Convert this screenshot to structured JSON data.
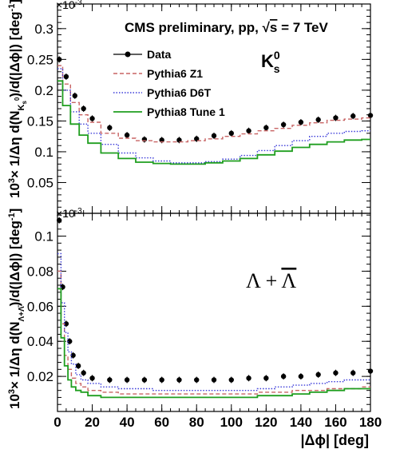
{
  "figure": {
    "header": "CMS preliminary, pp, ",
    "sqrt_symbol": "√",
    "energy_s": "s",
    "energy_value": " = 7 TeV",
    "xlabel": "|Δϕ| [deg]"
  },
  "legend": [
    {
      "key": "data",
      "label": "Data"
    },
    {
      "key": "z1",
      "label": "Pythia6 Z1"
    },
    {
      "key": "d6t",
      "label": "Pythia6 D6T"
    },
    {
      "key": "p8",
      "label": "Pythia8 Tune 1"
    }
  ],
  "colors": {
    "data": "#000000",
    "z1": "#c86464",
    "d6t": "#3b3bd9",
    "p8": "#1f9e1f",
    "frame": "#000000"
  },
  "chart_data": [
    {
      "type": "line",
      "panel": "top",
      "particle_label": "K",
      "particle_sup": "0",
      "particle_sub": "s",
      "multiplier_base": "×10",
      "multiplier_exp": "-3",
      "ylabel_prefix": "10",
      "ylabel_prefix_exp": "3",
      "ylabel_main": "× 1/Δη d(N",
      "ylabel_sub": "K",
      "ylabel_subsub": "s",
      "ylabel_subsup": "0",
      "ylabel_tail": ")/d(|Δϕ|) [deg",
      "ylabel_tail_exp": "-1",
      "ylabel_end": "]",
      "xlim": [
        0,
        180
      ],
      "ylim": [
        0,
        0.34
      ],
      "x_ticks": [
        0,
        20,
        40,
        60,
        80,
        100,
        120,
        140,
        160,
        180
      ],
      "y_ticks": [
        "0.05",
        "0.1",
        "0.15",
        "0.2",
        "0.25",
        "0.3"
      ],
      "y_tick_values": [
        0.05,
        0.1,
        0.15,
        0.2,
        0.25,
        0.3
      ],
      "x": [
        1,
        5,
        10,
        15,
        20,
        30,
        40,
        50,
        60,
        70,
        80,
        90,
        100,
        110,
        120,
        130,
        140,
        150,
        160,
        170,
        180
      ],
      "series": [
        {
          "key": "data",
          "name": "Data",
          "style": "points",
          "values": [
            0.25,
            0.222,
            0.191,
            0.17,
            0.154,
            0.139,
            0.127,
            0.12,
            0.119,
            0.119,
            0.121,
            0.126,
            0.13,
            0.134,
            0.139,
            0.144,
            0.148,
            0.152,
            0.155,
            0.158,
            0.159
          ]
        },
        {
          "key": "z1",
          "name": "Pythia6 Z1",
          "style": "dashed",
          "values": [
            0.24,
            0.21,
            0.18,
            0.16,
            0.148,
            0.13,
            0.122,
            0.118,
            0.116,
            0.116,
            0.118,
            0.121,
            0.125,
            0.129,
            0.134,
            0.138,
            0.143,
            0.147,
            0.151,
            0.153,
            0.155
          ]
        },
        {
          "key": "d6t",
          "name": "Pythia6 D6T",
          "style": "dotted",
          "values": [
            0.235,
            0.2,
            0.165,
            0.145,
            0.13,
            0.112,
            0.098,
            0.09,
            0.085,
            0.082,
            0.082,
            0.084,
            0.088,
            0.094,
            0.102,
            0.11,
            0.118,
            0.125,
            0.13,
            0.133,
            0.134
          ]
        },
        {
          "key": "p8",
          "name": "Pythia8 Tune 1",
          "style": "step",
          "values": [
            0.215,
            0.175,
            0.145,
            0.127,
            0.114,
            0.098,
            0.089,
            0.083,
            0.081,
            0.08,
            0.08,
            0.082,
            0.085,
            0.089,
            0.095,
            0.101,
            0.107,
            0.112,
            0.116,
            0.119,
            0.12
          ]
        }
      ]
    },
    {
      "type": "line",
      "panel": "bottom",
      "particle_label": "Λ + ",
      "particle_bar": "Λ",
      "multiplier_base": "×10",
      "multiplier_exp": "-3",
      "ylabel_prefix": "10",
      "ylabel_prefix_exp": "3",
      "ylabel_main": "× 1/Δη d(N",
      "ylabel_sub": "Λ+Λ̄",
      "ylabel_tail": ")/d(|Δϕ|) [deg",
      "ylabel_tail_exp": "-1",
      "ylabel_end": "]",
      "xlim": [
        0,
        180
      ],
      "ylim": [
        0,
        0.113
      ],
      "x_ticks": [
        0,
        20,
        40,
        60,
        80,
        100,
        120,
        140,
        160,
        180
      ],
      "x_tick_labels": [
        "0",
        "20",
        "40",
        "60",
        "80",
        "100",
        "120",
        "140",
        "160",
        "180"
      ],
      "y_ticks": [
        "0.02",
        "0.04",
        "0.06",
        "0.08",
        "0.1"
      ],
      "y_tick_values": [
        0.02,
        0.04,
        0.06,
        0.08,
        0.1
      ],
      "x": [
        1,
        3,
        5,
        7,
        9,
        12,
        15,
        20,
        30,
        40,
        50,
        60,
        70,
        80,
        90,
        100,
        110,
        120,
        130,
        140,
        150,
        160,
        170,
        180
      ],
      "series": [
        {
          "key": "data",
          "name": "Data",
          "style": "points",
          "values": [
            0.109,
            0.071,
            0.05,
            0.04,
            0.032,
            0.026,
            0.022,
            0.019,
            0.018,
            0.018,
            0.018,
            0.018,
            0.018,
            0.018,
            0.018,
            0.018,
            0.019,
            0.019,
            0.02,
            0.02,
            0.021,
            0.022,
            0.022,
            0.023
          ]
        },
        {
          "key": "z1",
          "name": "Pythia6 Z1",
          "style": "dashed",
          "values": [
            0.08,
            0.05,
            0.032,
            0.024,
            0.019,
            0.016,
            0.014,
            0.012,
            0.011,
            0.01,
            0.01,
            0.01,
            0.01,
            0.01,
            0.01,
            0.01,
            0.01,
            0.011,
            0.011,
            0.012,
            0.012,
            0.013,
            0.013,
            0.014
          ]
        },
        {
          "key": "d6t",
          "name": "Pythia6 D6T",
          "style": "dotted",
          "values": [
            0.09,
            0.062,
            0.045,
            0.034,
            0.027,
            0.021,
            0.018,
            0.016,
            0.014,
            0.013,
            0.013,
            0.012,
            0.012,
            0.012,
            0.012,
            0.012,
            0.012,
            0.013,
            0.014,
            0.015,
            0.016,
            0.017,
            0.018,
            0.018
          ]
        },
        {
          "key": "p8",
          "name": "Pythia8 Tune 1",
          "style": "step",
          "values": [
            0.07,
            0.042,
            0.026,
            0.018,
            0.014,
            0.012,
            0.011,
            0.009,
            0.008,
            0.008,
            0.008,
            0.008,
            0.008,
            0.008,
            0.008,
            0.008,
            0.008,
            0.009,
            0.009,
            0.01,
            0.011,
            0.012,
            0.013,
            0.013
          ]
        }
      ]
    }
  ]
}
